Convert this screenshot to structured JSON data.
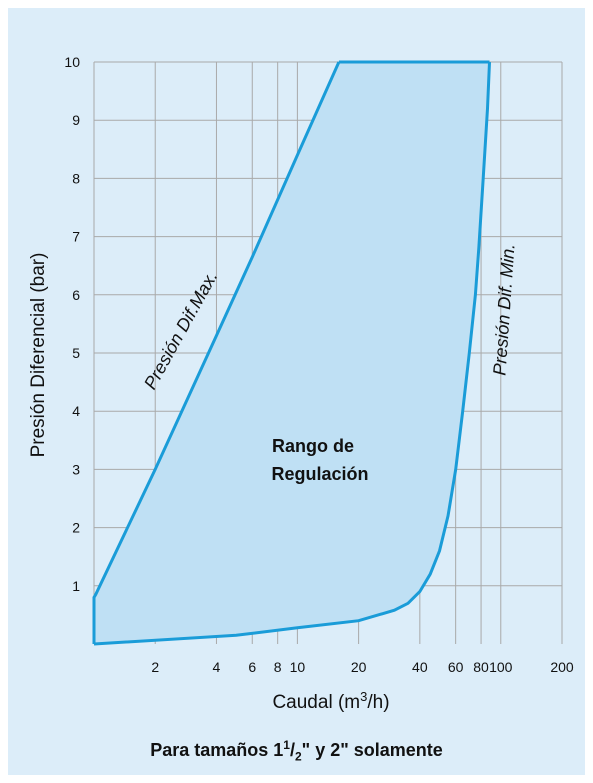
{
  "chart_data": {
    "type": "area",
    "title": "",
    "xscale": "log",
    "xlim": [
      1,
      200
    ],
    "ylim": [
      0,
      10
    ],
    "xticks": [
      2,
      4,
      6,
      8,
      10,
      20,
      40,
      60,
      80,
      100,
      200
    ],
    "yticks": [
      1,
      2,
      3,
      4,
      5,
      6,
      7,
      8,
      9,
      10
    ],
    "xlabel": "Caudal (m3/h)",
    "ylabel": "Presión Diferencial (bar)",
    "grid": true,
    "region_fill_color": "#bfe0f4",
    "line_color": "#1a9cd8",
    "background_color": "#dcedf9",
    "series": [
      {
        "name": "Presión Dif.Max.",
        "points": [
          [
            1.0,
            0.0
          ],
          [
            1.0,
            0.8
          ],
          [
            1.02,
            0.85
          ],
          [
            2.0,
            3.0
          ],
          [
            4.0,
            5.3
          ],
          [
            6.0,
            6.65
          ],
          [
            10.0,
            8.4
          ],
          [
            16.0,
            10.0
          ]
        ]
      },
      {
        "name": "Presión Dif. Min.",
        "points": [
          [
            1.0,
            0.0
          ],
          [
            5.0,
            0.15
          ],
          [
            10.0,
            0.28
          ],
          [
            20.0,
            0.4
          ],
          [
            30.0,
            0.58
          ],
          [
            35.0,
            0.7
          ],
          [
            40.0,
            0.9
          ],
          [
            45.0,
            1.2
          ],
          [
            50.0,
            1.6
          ],
          [
            55.0,
            2.2
          ],
          [
            60.0,
            3.0
          ],
          [
            65.0,
            4.0
          ],
          [
            70.0,
            5.0
          ],
          [
            75.0,
            6.0
          ],
          [
            78.0,
            6.8
          ],
          [
            82.0,
            8.0
          ],
          [
            86.0,
            9.2
          ],
          [
            88.0,
            10.0
          ]
        ]
      }
    ],
    "top_boundary": [
      [
        16.0,
        10.0
      ],
      [
        88.0,
        10.0
      ]
    ],
    "region_label": "Rango de Regulación",
    "region_label_lines": [
      "Rango de",
      "Regulación"
    ]
  },
  "text": {
    "xlabel_main": "Caudal (m",
    "xlabel_sup": "3",
    "xlabel_end": "/h)",
    "ylabel": "Presión Diferencial (bar)",
    "curve_max_label": "Presión Dif.Max.",
    "curve_min_label": "Presión Dif. Min.",
    "region_line1": "Rango de",
    "region_line2": "Regulación",
    "footnote_pre": "Para tamaños 1",
    "footnote_sup": "1",
    "footnote_slash": "/",
    "footnote_sub": "2",
    "footnote_post": "\" y 2\" solamente"
  }
}
